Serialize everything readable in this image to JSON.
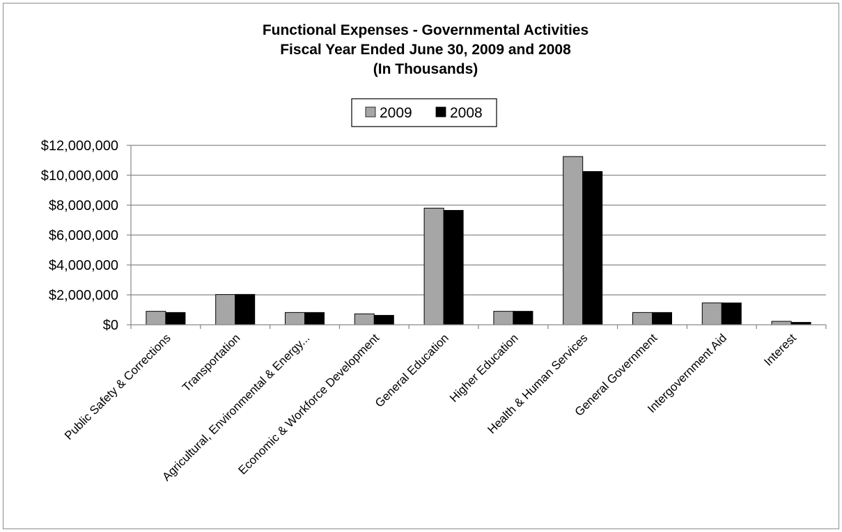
{
  "chart_data": {
    "type": "bar",
    "title": [
      "Functional Expenses - Governmental  Activities",
      "Fiscal Year Ended June 30, 2009 and 2008",
      "(In Thousands)"
    ],
    "xlabel": "",
    "ylabel": "",
    "categories": [
      "Public Safety & Corrections",
      "Transportation",
      "Agricultural, Environmental & Energy...",
      "Economic & Workforce Development",
      "General Education",
      "Higher Education",
      "Health & Human Services",
      "General Government",
      "Intergovernment Aid",
      "Interest"
    ],
    "series": [
      {
        "name": "2009",
        "color": "#a6a6a6",
        "values": [
          900000,
          2020000,
          820000,
          730000,
          7800000,
          900000,
          11250000,
          820000,
          1460000,
          230000
        ]
      },
      {
        "name": "2008",
        "color": "#000000",
        "values": [
          820000,
          2030000,
          820000,
          630000,
          7650000,
          900000,
          10250000,
          820000,
          1460000,
          160000
        ]
      }
    ],
    "ylim": [
      0,
      12000000
    ],
    "yticks": [
      0,
      2000000,
      4000000,
      6000000,
      8000000,
      10000000,
      12000000
    ],
    "ytick_labels": [
      "$0",
      "$2,000,000",
      "$4,000,000",
      "$6,000,000",
      "$8,000,000",
      "$10,000,000",
      "$12,000,000"
    ],
    "grid": true,
    "legend_position": "top-center"
  }
}
